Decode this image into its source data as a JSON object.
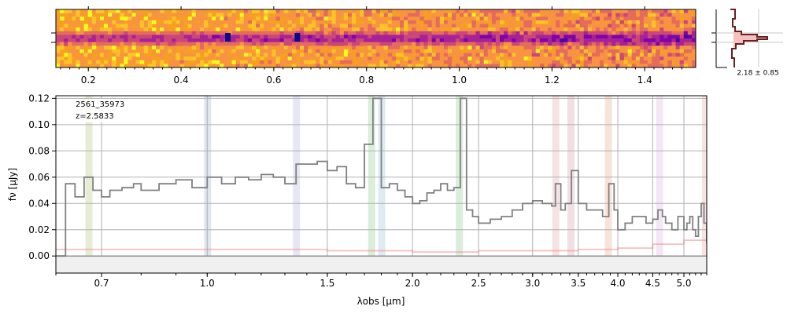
{
  "chart_data": [
    {
      "type": "heatmap",
      "title": "",
      "xlabel": "",
      "ylabel": "",
      "x_ticks": [
        "0.2",
        "0.4",
        "0.6",
        "0.8",
        "1.0",
        "1.2",
        "1.4"
      ],
      "xlim": [
        0.13,
        1.51
      ],
      "colormap": "plasma",
      "trace_row": "center",
      "bright_spots": [
        0.5,
        0.65
      ]
    },
    {
      "type": "line",
      "title": "",
      "profile_label": "2.18 ± 0.85"
    },
    {
      "type": "line",
      "title": "",
      "annotation": {
        "id": "2561_35973",
        "z": "z=2.5833"
      },
      "xlabel": "λobs [μm]",
      "ylabel": "fν [μJy]",
      "x_ticks": [
        "0.7",
        "1.0",
        "1.5",
        "2.0",
        "2.5",
        "3.0",
        "3.5",
        "4.0",
        "4.5",
        "5.0"
      ],
      "x_tick_values": [
        0.7,
        1.0,
        1.5,
        2.0,
        2.5,
        3.0,
        3.5,
        4.0,
        4.5,
        5.0
      ],
      "y_ticks": [
        "0.00",
        "0.02",
        "0.04",
        "0.06",
        "0.08",
        "0.10",
        "0.12"
      ],
      "y_tick_values": [
        0.0,
        0.02,
        0.04,
        0.06,
        0.08,
        0.1,
        0.12
      ],
      "xlim": [
        0.6,
        5.4
      ],
      "ylim": [
        -0.013,
        0.122
      ],
      "grid": true,
      "series": [
        {
          "name": "flux",
          "color": "#808080",
          "x": [
            0.6,
            0.62,
            0.64,
            0.66,
            0.68,
            0.7,
            0.72,
            0.75,
            0.78,
            0.8,
            0.85,
            0.9,
            0.95,
            1.0,
            1.05,
            1.1,
            1.15,
            1.2,
            1.25,
            1.3,
            1.35,
            1.4,
            1.45,
            1.5,
            1.55,
            1.6,
            1.65,
            1.7,
            1.75,
            1.8,
            1.85,
            1.9,
            1.95,
            2.0,
            2.05,
            2.1,
            2.15,
            2.2,
            2.25,
            2.3,
            2.35,
            2.4,
            2.45,
            2.5,
            2.6,
            2.7,
            2.8,
            2.9,
            3.0,
            3.1,
            3.2,
            3.24,
            3.3,
            3.35,
            3.42,
            3.5,
            3.6,
            3.7,
            3.8,
            3.88,
            3.95,
            4.0,
            4.1,
            4.2,
            4.3,
            4.4,
            4.5,
            4.58,
            4.65,
            4.7,
            4.8,
            4.9,
            5.0,
            5.05,
            5.1,
            5.15,
            5.2,
            5.25,
            5.3,
            5.35,
            5.4
          ],
          "y": [
            0.0,
            0.055,
            0.045,
            0.06,
            0.05,
            0.045,
            0.05,
            0.052,
            0.055,
            0.05,
            0.055,
            0.058,
            0.052,
            0.06,
            0.055,
            0.06,
            0.058,
            0.062,
            0.06,
            0.055,
            0.07,
            0.07,
            0.072,
            0.065,
            0.068,
            0.055,
            0.052,
            0.085,
            0.12,
            0.052,
            0.055,
            0.05,
            0.045,
            0.04,
            0.042,
            0.048,
            0.05,
            0.055,
            0.05,
            0.052,
            0.12,
            0.035,
            0.03,
            0.025,
            0.028,
            0.03,
            0.035,
            0.04,
            0.042,
            0.04,
            0.038,
            0.055,
            0.035,
            0.04,
            0.065,
            0.04,
            0.035,
            0.035,
            0.03,
            0.055,
            0.035,
            0.02,
            0.025,
            0.03,
            0.03,
            0.025,
            0.028,
            0.035,
            0.03,
            0.025,
            0.02,
            0.03,
            0.02,
            0.025,
            0.03,
            0.02,
            0.015,
            0.03,
            0.04,
            0.025,
            0.01
          ]
        },
        {
          "name": "error",
          "color": "#f08080",
          "x": [
            0.6,
            0.65,
            1.0,
            1.5,
            2.0,
            2.5,
            3.0,
            3.5,
            4.0,
            4.5,
            5.0,
            5.4
          ],
          "y": [
            0.005,
            0.005,
            0.005,
            0.004,
            0.003,
            0.004,
            0.004,
            0.005,
            0.006,
            0.009,
            0.012,
            0.02
          ]
        }
      ],
      "emission_bands": [
        {
          "x": 0.67,
          "color": "#c8d8a0"
        },
        {
          "x": 1.0,
          "color": "#b8c8e0"
        },
        {
          "x": 1.35,
          "color": "#c8c8e8"
        },
        {
          "x": 1.74,
          "color": "#b0d8b0"
        },
        {
          "x": 1.8,
          "color": "#b8d0e0"
        },
        {
          "x": 2.34,
          "color": "#b0d8b0"
        },
        {
          "x": 3.24,
          "color": "#e8c0c0"
        },
        {
          "x": 3.41,
          "color": "#e0b8c0"
        },
        {
          "x": 3.87,
          "color": "#f0c0a8"
        },
        {
          "x": 4.6,
          "color": "#e8c8e8"
        },
        {
          "x": 5.37,
          "color": "#f0c0c0"
        }
      ]
    }
  ]
}
